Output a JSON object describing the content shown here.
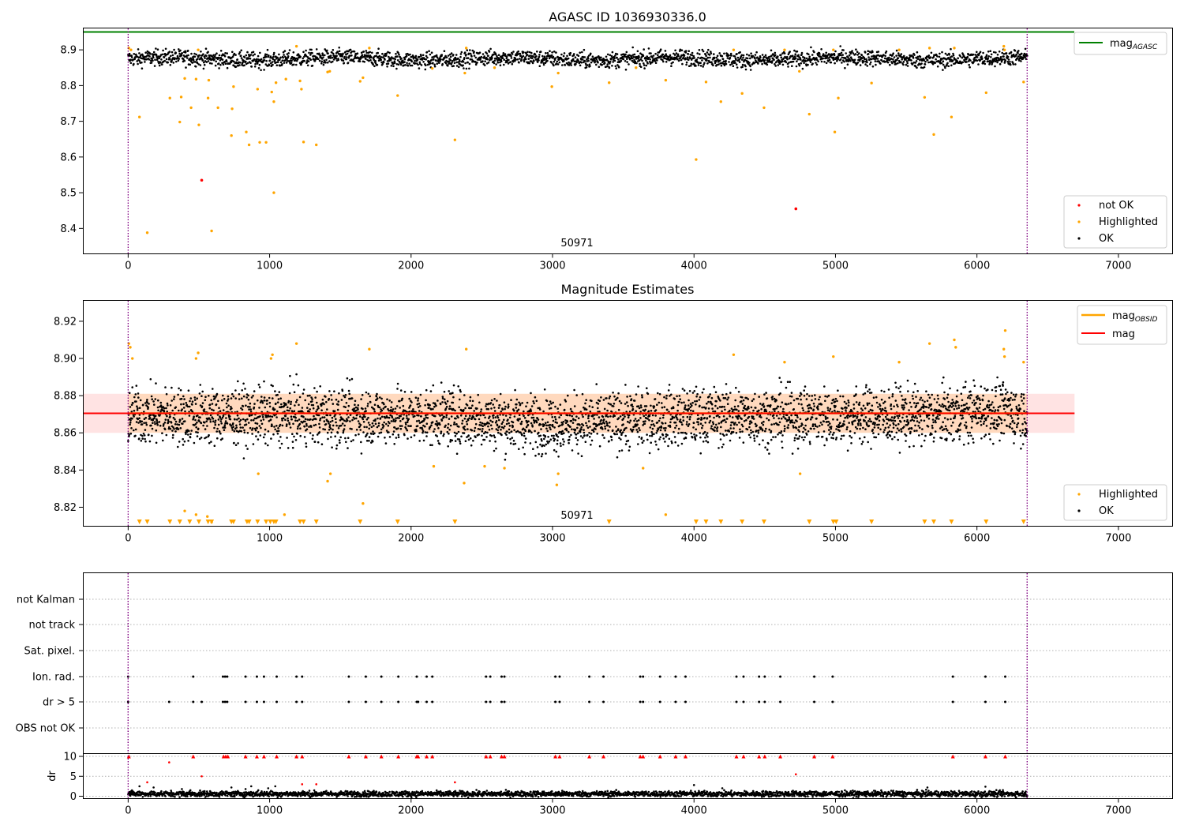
{
  "chart_data": [
    {
      "type": "scatter",
      "title": "AGASC ID 1036930336.0",
      "xlim": [
        -320,
        7380
      ],
      "ylim": [
        8.33,
        8.96
      ],
      "xticks": [
        "0",
        "1000",
        "2000",
        "3000",
        "4000",
        "5000",
        "6000",
        "7000"
      ],
      "yticks": [
        "8.4",
        "8.5",
        "8.6",
        "8.7",
        "8.8",
        "8.9"
      ],
      "vlines": [
        0,
        6355
      ],
      "annotation": {
        "text": "50971",
        "x": 3130,
        "y": 8.35
      },
      "baseline": {
        "name_main": "mag",
        "name_sub": "AGASC",
        "value": 8.95,
        "color": "#008000"
      },
      "ok_band": {
        "start": 0,
        "end": 6355,
        "center": 8.875,
        "spread": 0.011
      },
      "series": [
        {
          "name": "not OK",
          "color": "#ff0000",
          "points": [
            [
              520,
              8.535
            ],
            [
              4720,
              8.455
            ]
          ]
        },
        {
          "name": "Highlighted",
          "color": "#ffa500",
          "points": [
            [
              5,
              8.905
            ],
            [
              20,
              8.9
            ],
            [
              80,
              8.712
            ],
            [
              135,
              8.388
            ],
            [
              295,
              8.765
            ],
            [
              365,
              8.698
            ],
            [
              375,
              8.768
            ],
            [
              400,
              8.82
            ],
            [
              445,
              8.738
            ],
            [
              480,
              8.818
            ],
            [
              495,
              8.9
            ],
            [
              500,
              8.69
            ],
            [
              565,
              8.765
            ],
            [
              570,
              8.815
            ],
            [
              590,
              8.393
            ],
            [
              635,
              8.738
            ],
            [
              730,
              8.66
            ],
            [
              735,
              8.735
            ],
            [
              745,
              8.797
            ],
            [
              835,
              8.67
            ],
            [
              855,
              8.634
            ],
            [
              915,
              8.79
            ],
            [
              930,
              8.641
            ],
            [
              975,
              8.641
            ],
            [
              1015,
              8.782
            ],
            [
              1030,
              8.755
            ],
            [
              1030,
              8.5
            ],
            [
              1045,
              8.808
            ],
            [
              1115,
              8.818
            ],
            [
              1190,
              8.91
            ],
            [
              1215,
              8.813
            ],
            [
              1225,
              8.79
            ],
            [
              1240,
              8.642
            ],
            [
              1330,
              8.634
            ],
            [
              1410,
              8.838
            ],
            [
              1425,
              8.84
            ],
            [
              1640,
              8.812
            ],
            [
              1660,
              8.822
            ],
            [
              1705,
              8.905
            ],
            [
              1905,
              8.772
            ],
            [
              2150,
              8.848
            ],
            [
              2310,
              8.648
            ],
            [
              2380,
              8.835
            ],
            [
              2390,
              8.905
            ],
            [
              2590,
              8.85
            ],
            [
              2995,
              8.797
            ],
            [
              3040,
              8.835
            ],
            [
              3400,
              8.808
            ],
            [
              3590,
              8.85
            ],
            [
              3800,
              8.815
            ],
            [
              4015,
              8.593
            ],
            [
              4085,
              8.81
            ],
            [
              4190,
              8.755
            ],
            [
              4280,
              8.9
            ],
            [
              4340,
              8.778
            ],
            [
              4495,
              8.738
            ],
            [
              4640,
              8.9
            ],
            [
              4745,
              8.84
            ],
            [
              4815,
              8.72
            ],
            [
              4985,
              8.9
            ],
            [
              4995,
              8.67
            ],
            [
              5020,
              8.765
            ],
            [
              5255,
              8.807
            ],
            [
              5450,
              8.9
            ],
            [
              5630,
              8.767
            ],
            [
              5665,
              8.905
            ],
            [
              5695,
              8.663
            ],
            [
              5820,
              8.712
            ],
            [
              5840,
              8.905
            ],
            [
              6065,
              8.78
            ],
            [
              6190,
              8.91
            ],
            [
              6195,
              8.9
            ],
            [
              6330,
              8.81
            ]
          ]
        },
        {
          "name": "OK",
          "color": "#000000",
          "points": []
        }
      ],
      "legend": {
        "position": "lower-right",
        "items": [
          "not OK",
          "Highlighted",
          "OK"
        ]
      },
      "legend_top": {
        "position": "upper-right",
        "items": [
          "mag AGASC"
        ]
      }
    },
    {
      "type": "scatter",
      "title": "Magnitude Estimates",
      "xlim": [
        -320,
        7380
      ],
      "ylim": [
        8.81,
        8.931
      ],
      "xticks": [
        "0",
        "1000",
        "2000",
        "3000",
        "4000",
        "5000",
        "6000",
        "7000"
      ],
      "yticks": [
        "8.82",
        "8.84",
        "8.86",
        "8.88",
        "8.90",
        "8.92"
      ],
      "vlines": [
        0,
        6355
      ],
      "annotation": {
        "text": "50971",
        "x": 3130,
        "y": 8.8135
      },
      "mag": {
        "name": "mag",
        "value": 8.8705,
        "band": [
          8.86,
          8.881
        ],
        "x_end": 6690,
        "color": "#ff0000"
      },
      "mag_obsid": {
        "name_main": "mag",
        "name_sub": "OBSID",
        "value": 8.8705,
        "band": [
          8.86,
          8.881
        ],
        "x_end": 6355,
        "color": "#ffa500"
      },
      "ok_band": {
        "start": 0,
        "end": 6355,
        "center": 8.869,
        "spread": 0.0075
      },
      "series": [
        {
          "name": "Highlighted",
          "color": "#ffa500",
          "points": [
            [
              5,
              8.908
            ],
            [
              15,
              8.906
            ],
            [
              30,
              8.9
            ],
            [
              480,
              8.9
            ],
            [
              495,
              8.903
            ],
            [
              1010,
              8.9
            ],
            [
              1020,
              8.902
            ],
            [
              1190,
              8.908
            ],
            [
              1705,
              8.905
            ],
            [
              2390,
              8.905
            ],
            [
              4280,
              8.902
            ],
            [
              4640,
              8.898
            ],
            [
              4985,
              8.901
            ],
            [
              5450,
              8.898
            ],
            [
              5665,
              8.908
            ],
            [
              5840,
              8.91
            ],
            [
              5850,
              8.906
            ],
            [
              6190,
              8.905
            ],
            [
              6195,
              8.901
            ],
            [
              6200,
              8.915
            ],
            [
              6330,
              8.898
            ],
            [
              920,
              8.838
            ],
            [
              2160,
              8.842
            ],
            [
              2520,
              8.842
            ],
            [
              3030,
              8.832
            ],
            [
              3040,
              8.838
            ],
            [
              3640,
              8.841
            ],
            [
              2660,
              8.841
            ],
            [
              4750,
              8.838
            ],
            [
              1410,
              8.834
            ],
            [
              1430,
              8.838
            ],
            [
              2375,
              8.833
            ],
            [
              400,
              8.818
            ],
            [
              480,
              8.816
            ],
            [
              560,
              8.815
            ],
            [
              590,
              8.812
            ],
            [
              1105,
              8.816
            ],
            [
              1660,
              8.822
            ],
            [
              3800,
              8.816
            ]
          ]
        },
        {
          "name": "OK",
          "color": "#000000",
          "points": []
        }
      ],
      "clipped_markers": [
        80,
        135,
        295,
        365,
        435,
        500,
        565,
        590,
        730,
        745,
        840,
        855,
        915,
        975,
        1005,
        1030,
        1045,
        1215,
        1240,
        1330,
        1640,
        1905,
        2310,
        3400,
        4015,
        4085,
        4190,
        4340,
        4495,
        4815,
        4985,
        5005,
        5255,
        5630,
        5695,
        5820,
        6065,
        6330
      ],
      "legend": {
        "position": "lower-right",
        "items": [
          "Highlighted",
          "OK"
        ]
      },
      "legend_top": {
        "position": "upper-right",
        "items": [
          "mag OBSID",
          "mag"
        ]
      }
    },
    {
      "type": "scatter",
      "title": "",
      "xlim": [
        -320,
        7380
      ],
      "categories": [
        "not Kalman",
        "not track",
        "Sat. pixel.",
        "Ion. rad.",
        "dr > 5",
        "OBS not OK"
      ],
      "vlines": [
        0,
        6355
      ],
      "flag_positions": [
        0,
        290,
        460,
        520,
        670,
        685,
        700,
        830,
        910,
        960,
        1050,
        1190,
        1230,
        1560,
        1680,
        1790,
        1910,
        2040,
        2050,
        2110,
        2150,
        2530,
        2560,
        2640,
        2660,
        3020,
        3050,
        3260,
        3360,
        3620,
        3640,
        3760,
        3870,
        3940,
        4300,
        4350,
        4460,
        4500,
        4610,
        4850,
        4980,
        5830,
        6060,
        6200
      ],
      "ion_rad_only": [
        0,
        460,
        670,
        685,
        700,
        830,
        910,
        960,
        1050,
        1190,
        1230,
        1560,
        1680,
        1790,
        1910,
        2040,
        2110,
        2150,
        2530,
        2560,
        2640,
        2660,
        3020,
        3050,
        3260,
        3360,
        3620,
        3640,
        3760,
        3870,
        3940,
        4300,
        4350,
        4460,
        4500,
        4610,
        4850,
        4980,
        5830,
        6060,
        6200
      ]
    },
    {
      "type": "scatter",
      "title": "",
      "xlim": [
        -320,
        7380
      ],
      "ylim": [
        -0.5,
        10.6
      ],
      "ylabel": "dr",
      "yticks": [
        "0",
        "5",
        "10"
      ],
      "xticks": [
        "0",
        "1000",
        "2000",
        "3000",
        "4000",
        "5000",
        "6000",
        "7000"
      ],
      "vlines": [
        0,
        6355
      ],
      "clip_value": 10,
      "ok_band": {
        "start": 0,
        "end": 6355,
        "center": 0.6,
        "spread": 0.35
      },
      "series": [
        {
          "name": "not OK",
          "color": "#ff0000",
          "points": [
            [
              5,
              10
            ],
            [
              135,
              3.5
            ],
            [
              290,
              8.5
            ],
            [
              520,
              5
            ],
            [
              1230,
              3
            ],
            [
              1330,
              3
            ],
            [
              2310,
              3.5
            ],
            [
              4720,
              5.5
            ],
            [
              675,
              10
            ],
            [
              690,
              10
            ],
            [
              705,
              10
            ],
            [
              830,
              10
            ],
            [
              910,
              10
            ],
            [
              960,
              10
            ],
            [
              1050,
              10
            ],
            [
              1190,
              10
            ],
            [
              1230,
              10
            ],
            [
              1560,
              10
            ],
            [
              1680,
              10
            ],
            [
              1790,
              10
            ],
            [
              1910,
              10
            ],
            [
              2040,
              10
            ],
            [
              2050,
              10
            ],
            [
              2110,
              10
            ],
            [
              2150,
              10
            ],
            [
              2530,
              10
            ],
            [
              2560,
              10
            ],
            [
              2640,
              10
            ],
            [
              2660,
              10
            ],
            [
              3020,
              10
            ],
            [
              3050,
              10
            ],
            [
              3260,
              10
            ],
            [
              3360,
              10
            ],
            [
              3620,
              10
            ],
            [
              3640,
              10
            ],
            [
              3760,
              10
            ],
            [
              3870,
              10
            ],
            [
              3940,
              10
            ],
            [
              4300,
              10
            ],
            [
              4350,
              10
            ],
            [
              4460,
              10
            ],
            [
              4500,
              10
            ],
            [
              4610,
              10
            ],
            [
              4850,
              10
            ],
            [
              4980,
              10
            ],
            [
              5830,
              10
            ],
            [
              6060,
              10
            ],
            [
              6200,
              10
            ],
            [
              460,
              10
            ]
          ]
        },
        {
          "name": "OK",
          "color": "#000000",
          "points": [
            [
              80,
              2.5
            ],
            [
              180,
              2.2
            ],
            [
              380,
              1.8
            ],
            [
              440,
              1.5
            ],
            [
              730,
              2.2
            ],
            [
              830,
              1.8
            ],
            [
              870,
              2.5
            ],
            [
              920,
              1.5
            ],
            [
              990,
              2.0
            ],
            [
              1040,
              2.5
            ],
            [
              4000,
              2.8
            ],
            [
              4200,
              2.0
            ],
            [
              5650,
              2.2
            ],
            [
              6060,
              2.4
            ]
          ]
        }
      ]
    }
  ]
}
